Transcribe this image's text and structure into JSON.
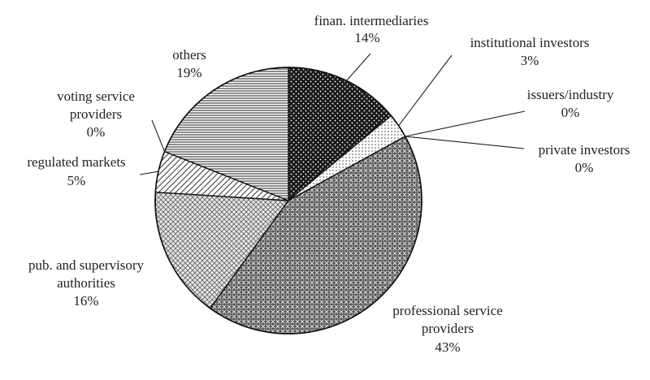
{
  "chart_data": {
    "type": "pie",
    "title": "",
    "start_angle_deg": 0,
    "direction": "clockwise",
    "slices": [
      {
        "label": "finan. intermediaries",
        "value": 14,
        "pct": "14%",
        "pattern": "dark-dots"
      },
      {
        "label": "institutional investors",
        "value": 3,
        "pct": "3%",
        "pattern": "light-dots"
      },
      {
        "label": "issuers/industry",
        "value": 0,
        "pct": "0%",
        "pattern": "none"
      },
      {
        "label": "private investors",
        "value": 0,
        "pct": "0%",
        "pattern": "none"
      },
      {
        "label": "professional service providers",
        "value": 43,
        "pct": "43%",
        "pattern": "dark-lattice"
      },
      {
        "label": "pub. and supervisory authorities",
        "value": 16,
        "pct": "16%",
        "pattern": "light-lattice"
      },
      {
        "label": "regulated markets",
        "value": 5,
        "pct": "5%",
        "pattern": "diagonal"
      },
      {
        "label": "voting service providers",
        "value": 0,
        "pct": "0%",
        "pattern": "none"
      },
      {
        "label": "others",
        "value": 19,
        "pct": "19%",
        "pattern": "horizontal-lines"
      }
    ]
  }
}
